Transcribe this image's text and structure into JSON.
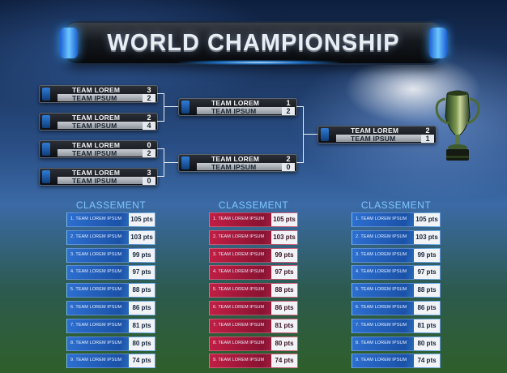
{
  "title": "WORLD CHAMPIONSHIP",
  "bracket": {
    "round1": [
      {
        "team1": "TEAM LOREM",
        "score1": "3",
        "team2": "TEAM IPSUM",
        "score2": "2"
      },
      {
        "team1": "TEAM LOREM",
        "score1": "2",
        "team2": "TEAM IPSUM",
        "score2": "4"
      },
      {
        "team1": "TEAM LOREM",
        "score1": "0",
        "team2": "TEAM IPSUM",
        "score2": "2"
      },
      {
        "team1": "TEAM LOREM",
        "score1": "3",
        "team2": "TEAM IPSUM",
        "score2": "0"
      }
    ],
    "semifinals": [
      {
        "team1": "TEAM LOREM",
        "score1": "1",
        "team2": "TEAM IPSUM",
        "score2": "2"
      },
      {
        "team1": "TEAM LOREM",
        "score1": "2",
        "team2": "TEAM IPSUM",
        "score2": "0"
      }
    ],
    "final": {
      "team1": "TEAM LOREM",
      "score1": "2",
      "team2": "TEAM IPSUM",
      "score2": "1"
    }
  },
  "icons": {
    "trophy": "trophy-icon"
  },
  "colors": {
    "accent_blue": "#2d6fd0",
    "accent_red": "#c21f45",
    "heading": "#7fc6ff"
  },
  "standings": [
    {
      "heading": "CLASSEMENT",
      "theme": "blue",
      "rows": [
        {
          "label": "1. TEAM LOREM IPSUM",
          "pts": "105 pts"
        },
        {
          "label": "2. TEAM LOREM IPSUM",
          "pts": "103 pts"
        },
        {
          "label": "3. TEAM LOREM IPSUM",
          "pts": "99 pts"
        },
        {
          "label": "4. TEAM LOREM IPSUM",
          "pts": "97 pts"
        },
        {
          "label": "5. TEAM LOREM IPSUM",
          "pts": "88 pts"
        },
        {
          "label": "6. TEAM LOREM IPSUM",
          "pts": "86 pts"
        },
        {
          "label": "7. TEAM LOREM IPSUM",
          "pts": "81 pts"
        },
        {
          "label": "8. TEAM LOREM IPSUM",
          "pts": "80 pts"
        },
        {
          "label": "9. TEAM LOREM IPSUM",
          "pts": "74 pts"
        }
      ]
    },
    {
      "heading": "CLASSEMENT",
      "theme": "red",
      "rows": [
        {
          "label": "1. TEAM LOREM IPSUM",
          "pts": "105 pts"
        },
        {
          "label": "2. TEAM LOREM IPSUM",
          "pts": "103 pts"
        },
        {
          "label": "3. TEAM LOREM IPSUM",
          "pts": "99 pts"
        },
        {
          "label": "4. TEAM LOREM IPSUM",
          "pts": "97 pts"
        },
        {
          "label": "5. TEAM LOREM IPSUM",
          "pts": "88 pts"
        },
        {
          "label": "6. TEAM LOREM IPSUM",
          "pts": "86 pts"
        },
        {
          "label": "7. TEAM LOREM IPSUM",
          "pts": "81 pts"
        },
        {
          "label": "8. TEAM LOREM IPSUM",
          "pts": "80 pts"
        },
        {
          "label": "9. TEAM LOREM IPSUM",
          "pts": "74 pts"
        }
      ]
    },
    {
      "heading": "CLASSEMENT",
      "theme": "blue",
      "rows": [
        {
          "label": "1. TEAM LOREM IPSUM",
          "pts": "105 pts"
        },
        {
          "label": "2. TEAM LOREM IPSUM",
          "pts": "103 pts"
        },
        {
          "label": "3. TEAM LOREM IPSUM",
          "pts": "99 pts"
        },
        {
          "label": "4. TEAM LOREM IPSUM",
          "pts": "97 pts"
        },
        {
          "label": "5. TEAM LOREM IPSUM",
          "pts": "88 pts"
        },
        {
          "label": "6. TEAM LOREM IPSUM",
          "pts": "86 pts"
        },
        {
          "label": "7. TEAM LOREM IPSUM",
          "pts": "81 pts"
        },
        {
          "label": "8. TEAM LOREM IPSUM",
          "pts": "80 pts"
        },
        {
          "label": "9. TEAM LOREM IPSUM",
          "pts": "74 pts"
        }
      ]
    }
  ]
}
